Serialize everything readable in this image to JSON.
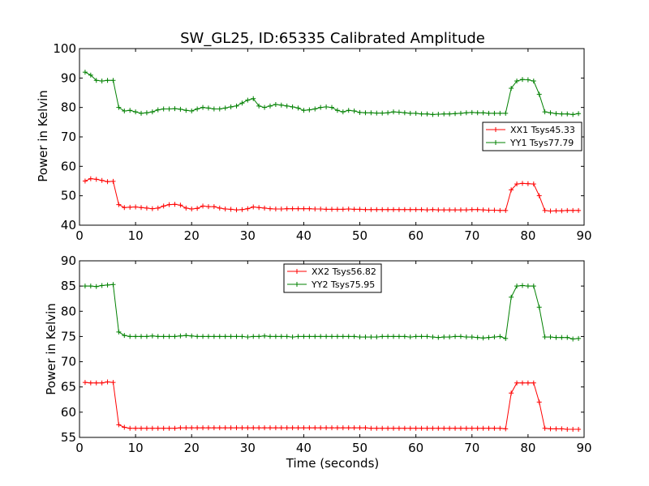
{
  "colors": {
    "red": "#ff0000",
    "green": "#008000"
  },
  "chart_data": [
    {
      "type": "line",
      "title": "SW_GL25, ID:65335 Calibrated Amplitude",
      "xlabel": "",
      "ylabel": "Power in Kelvin",
      "xlim": [
        0,
        90
      ],
      "ylim": [
        40,
        100
      ],
      "xticks": [
        0,
        10,
        20,
        30,
        40,
        50,
        60,
        70,
        80,
        90
      ],
      "yticks": [
        40,
        50,
        60,
        70,
        80,
        90,
        100
      ],
      "legend_position": "right",
      "series": [
        {
          "name": "XX1 Tsys45.33",
          "color": "#ff0000",
          "x": [
            1,
            2,
            3,
            4,
            5,
            6,
            7,
            8,
            9,
            10,
            11,
            12,
            13,
            14,
            15,
            16,
            17,
            18,
            19,
            20,
            21,
            22,
            23,
            24,
            25,
            26,
            27,
            28,
            29,
            30,
            31,
            32,
            33,
            34,
            35,
            36,
            37,
            38,
            39,
            40,
            41,
            42,
            43,
            44,
            45,
            46,
            47,
            48,
            49,
            50,
            51,
            52,
            53,
            54,
            55,
            56,
            57,
            58,
            59,
            60,
            61,
            62,
            63,
            64,
            65,
            66,
            67,
            68,
            69,
            70,
            71,
            72,
            73,
            74,
            75,
            76,
            77,
            78,
            79,
            80,
            81,
            82,
            83,
            84,
            85,
            86,
            87,
            88,
            89
          ],
          "y": [
            55,
            55.8,
            55.6,
            55.2,
            54.8,
            54.9,
            47,
            46,
            46.1,
            46.2,
            46,
            45.8,
            45.6,
            45.8,
            46.5,
            47,
            47.1,
            46.8,
            45.8,
            45.5,
            45.7,
            46.5,
            46.3,
            46.3,
            45.8,
            45.5,
            45.4,
            45.2,
            45.3,
            45.6,
            46.2,
            46,
            45.8,
            45.6,
            45.5,
            45.5,
            45.6,
            45.6,
            45.6,
            45.6,
            45.6,
            45.5,
            45.5,
            45.4,
            45.4,
            45.4,
            45.4,
            45.5,
            45.4,
            45.4,
            45.3,
            45.3,
            45.3,
            45.3,
            45.3,
            45.3,
            45.3,
            45.3,
            45.3,
            45.3,
            45.3,
            45.2,
            45.3,
            45.2,
            45.2,
            45.2,
            45.2,
            45.2,
            45.2,
            45.3,
            45.3,
            45.2,
            45.1,
            45.1,
            45,
            45,
            52,
            54,
            54.2,
            54.1,
            54,
            50,
            45,
            44.8,
            44.9,
            44.9,
            45,
            45,
            45
          ]
        },
        {
          "name": "YY1 Tsys77.79",
          "color": "#008000",
          "x": [
            1,
            2,
            3,
            4,
            5,
            6,
            7,
            8,
            9,
            10,
            11,
            12,
            13,
            14,
            15,
            16,
            17,
            18,
            19,
            20,
            21,
            22,
            23,
            24,
            25,
            26,
            27,
            28,
            29,
            30,
            31,
            32,
            33,
            34,
            35,
            36,
            37,
            38,
            39,
            40,
            41,
            42,
            43,
            44,
            45,
            46,
            47,
            48,
            49,
            50,
            51,
            52,
            53,
            54,
            55,
            56,
            57,
            58,
            59,
            60,
            61,
            62,
            63,
            64,
            65,
            66,
            67,
            68,
            69,
            70,
            71,
            72,
            73,
            74,
            75,
            76,
            77,
            78,
            79,
            80,
            81,
            82,
            83,
            84,
            85,
            86,
            87,
            88,
            89
          ],
          "y": [
            92,
            91,
            89.2,
            89,
            89.2,
            89.2,
            80,
            78.8,
            79,
            78.5,
            78,
            78.2,
            78.5,
            79.2,
            79.5,
            79.5,
            79.6,
            79.4,
            79,
            78.8,
            79.5,
            80,
            79.8,
            79.5,
            79.5,
            79.8,
            80.2,
            80.5,
            81.5,
            82.5,
            83,
            80.5,
            80,
            80.5,
            81,
            80.8,
            80.5,
            80.2,
            79.8,
            79,
            79.2,
            79.5,
            80,
            80.2,
            80,
            79,
            78.5,
            79,
            78.8,
            78.3,
            78.2,
            78.2,
            78.1,
            78.1,
            78.2,
            78.5,
            78.4,
            78.2,
            78,
            78,
            77.8,
            77.8,
            77.6,
            77.7,
            77.8,
            77.8,
            77.9,
            78,
            78.2,
            78.3,
            78.2,
            78.2,
            78,
            78,
            78,
            78,
            86.5,
            89,
            89.5,
            89.4,
            89,
            84.5,
            78.5,
            78.2,
            77.9,
            77.8,
            77.8,
            77.6,
            77.9
          ]
        }
      ]
    },
    {
      "type": "line",
      "title": "",
      "xlabel": "Time (seconds)",
      "ylabel": "Power in Kelvin",
      "xlim": [
        0,
        90
      ],
      "ylim": [
        55,
        90
      ],
      "xticks": [
        0,
        10,
        20,
        30,
        40,
        50,
        60,
        70,
        80,
        90
      ],
      "yticks": [
        55,
        60,
        65,
        70,
        75,
        80,
        85,
        90
      ],
      "legend_position": "top-center",
      "series": [
        {
          "name": "XX2 Tsys56.82",
          "color": "#ff0000",
          "x": [
            1,
            2,
            3,
            4,
            5,
            6,
            7,
            8,
            9,
            10,
            11,
            12,
            13,
            14,
            15,
            16,
            17,
            18,
            19,
            20,
            21,
            22,
            23,
            24,
            25,
            26,
            27,
            28,
            29,
            30,
            31,
            32,
            33,
            34,
            35,
            36,
            37,
            38,
            39,
            40,
            41,
            42,
            43,
            44,
            45,
            46,
            47,
            48,
            49,
            50,
            51,
            52,
            53,
            54,
            55,
            56,
            57,
            58,
            59,
            60,
            61,
            62,
            63,
            64,
            65,
            66,
            67,
            68,
            69,
            70,
            71,
            72,
            73,
            74,
            75,
            76,
            77,
            78,
            79,
            80,
            81,
            82,
            83,
            84,
            85,
            86,
            87,
            88,
            89
          ],
          "y": [
            65.9,
            65.8,
            65.8,
            65.8,
            66,
            65.9,
            57.5,
            57,
            56.8,
            56.8,
            56.8,
            56.8,
            56.8,
            56.8,
            56.8,
            56.8,
            56.8,
            56.9,
            56.9,
            56.9,
            56.9,
            56.9,
            56.9,
            56.9,
            56.9,
            56.9,
            56.9,
            56.9,
            56.9,
            56.9,
            56.9,
            56.9,
            56.9,
            56.9,
            56.9,
            56.9,
            56.9,
            56.9,
            56.9,
            56.9,
            56.9,
            56.9,
            56.9,
            56.9,
            56.9,
            56.9,
            56.9,
            56.9,
            56.9,
            56.9,
            56.9,
            56.8,
            56.8,
            56.8,
            56.8,
            56.8,
            56.8,
            56.8,
            56.8,
            56.8,
            56.8,
            56.8,
            56.8,
            56.8,
            56.8,
            56.8,
            56.8,
            56.8,
            56.8,
            56.8,
            56.8,
            56.8,
            56.8,
            56.8,
            56.8,
            56.7,
            63.8,
            65.8,
            65.8,
            65.8,
            65.8,
            62,
            56.8,
            56.7,
            56.7,
            56.7,
            56.6,
            56.6,
            56.6
          ]
        },
        {
          "name": "YY2 Tsys75.95",
          "color": "#008000",
          "x": [
            1,
            2,
            3,
            4,
            5,
            6,
            7,
            8,
            9,
            10,
            11,
            12,
            13,
            14,
            15,
            16,
            17,
            18,
            19,
            20,
            21,
            22,
            23,
            24,
            25,
            26,
            27,
            28,
            29,
            30,
            31,
            32,
            33,
            34,
            35,
            36,
            37,
            38,
            39,
            40,
            41,
            42,
            43,
            44,
            45,
            46,
            47,
            48,
            49,
            50,
            51,
            52,
            53,
            54,
            55,
            56,
            57,
            58,
            59,
            60,
            61,
            62,
            63,
            64,
            65,
            66,
            67,
            68,
            69,
            70,
            71,
            72,
            73,
            74,
            75,
            76,
            77,
            78,
            79,
            80,
            81,
            82,
            83,
            84,
            85,
            86,
            87,
            88,
            89
          ],
          "y": [
            85,
            85,
            84.9,
            85.1,
            85.2,
            85.3,
            75.9,
            75.2,
            75,
            75,
            75,
            75,
            75.1,
            75,
            75,
            75,
            75,
            75.1,
            75.2,
            75.1,
            75,
            75,
            75,
            75,
            75,
            75,
            75,
            75,
            75,
            74.9,
            75,
            75,
            75.1,
            75,
            75,
            75,
            75,
            74.9,
            75,
            75,
            75,
            75,
            75,
            75,
            75,
            75,
            75,
            75,
            75,
            74.9,
            74.9,
            74.9,
            74.9,
            75,
            75,
            75,
            75,
            75,
            74.9,
            75,
            75,
            75,
            74.9,
            74.8,
            74.9,
            74.9,
            75,
            75,
            74.9,
            74.9,
            74.8,
            74.7,
            74.8,
            74.9,
            75,
            74.6,
            82.8,
            85,
            85.1,
            85,
            85,
            80.8,
            74.9,
            74.9,
            74.8,
            74.8,
            74.8,
            74.5,
            74.6
          ]
        }
      ]
    }
  ]
}
